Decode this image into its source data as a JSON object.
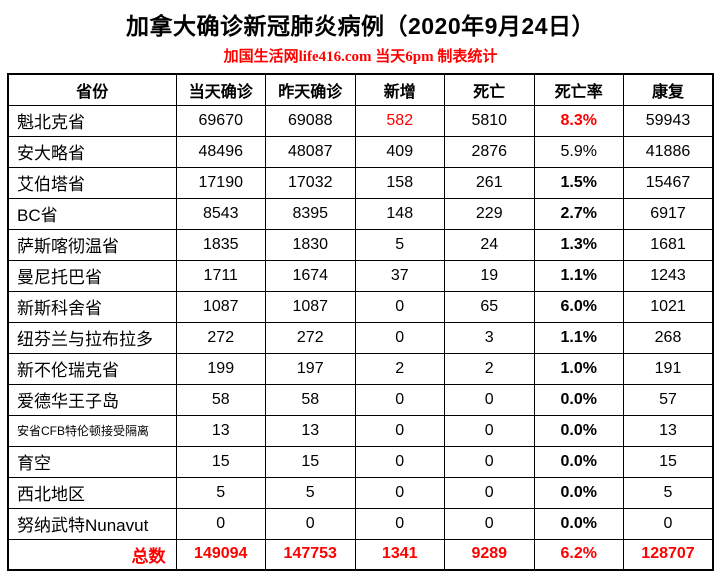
{
  "title": "加拿大确诊新冠肺炎病例（2020年9月24日）",
  "subtitle": "加国生活网life416.com 当天6pm 制表统计",
  "colors": {
    "accent_red": "#ff0000",
    "text": "#000000",
    "border": "#000000",
    "background": "#ffffff"
  },
  "chart_data": {
    "type": "table",
    "title": "加拿大确诊新冠肺炎病例（2020年9月24日）",
    "columns": [
      "省份",
      "当天确诊",
      "昨天确诊",
      "新增",
      "死亡",
      "死亡率",
      "康复"
    ],
    "rows": [
      {
        "province": "魁北克省",
        "today": "69670",
        "yesterday": "69088",
        "new": "582",
        "deaths": "5810",
        "rate": "8.3%",
        "recovered": "59943",
        "new_red": true,
        "rate_red": true,
        "rate_bold": true
      },
      {
        "province": "安大略省",
        "today": "48496",
        "yesterday": "48087",
        "new": "409",
        "deaths": "2876",
        "rate": "5.9%",
        "recovered": "41886"
      },
      {
        "province": "艾伯塔省",
        "today": "17190",
        "yesterday": "17032",
        "new": "158",
        "deaths": "261",
        "rate": "1.5%",
        "recovered": "15467",
        "rate_bold": true
      },
      {
        "province": "BC省",
        "today": "8543",
        "yesterday": "8395",
        "new": "148",
        "deaths": "229",
        "rate": "2.7%",
        "recovered": "6917",
        "rate_bold": true
      },
      {
        "province": "萨斯喀彻温省",
        "today": "1835",
        "yesterday": "1830",
        "new": "5",
        "deaths": "24",
        "rate": "1.3%",
        "recovered": "1681",
        "rate_bold": true
      },
      {
        "province": "曼尼托巴省",
        "today": "1711",
        "yesterday": "1674",
        "new": "37",
        "deaths": "19",
        "rate": "1.1%",
        "recovered": "1243",
        "rate_bold": true
      },
      {
        "province": "新斯科舍省",
        "today": "1087",
        "yesterday": "1087",
        "new": "0",
        "deaths": "65",
        "rate": "6.0%",
        "recovered": "1021",
        "rate_bold": true
      },
      {
        "province": "纽芬兰与拉布拉多",
        "today": "272",
        "yesterday": "272",
        "new": "0",
        "deaths": "3",
        "rate": "1.1%",
        "recovered": "268",
        "rate_bold": true
      },
      {
        "province": "新不伦瑞克省",
        "today": "199",
        "yesterday": "197",
        "new": "2",
        "deaths": "2",
        "rate": "1.0%",
        "recovered": "191",
        "rate_bold": true
      },
      {
        "province": "爱德华王子岛",
        "today": "58",
        "yesterday": "58",
        "new": "0",
        "deaths": "0",
        "rate": "0.0%",
        "recovered": "57",
        "rate_bold": true
      },
      {
        "province": "安省CFB特伦顿接受隔离",
        "today": "13",
        "yesterday": "13",
        "new": "0",
        "deaths": "0",
        "rate": "0.0%",
        "recovered": "13",
        "rate_bold": true,
        "small": true
      },
      {
        "province": "育空",
        "today": "15",
        "yesterday": "15",
        "new": "0",
        "deaths": "0",
        "rate": "0.0%",
        "recovered": "15",
        "rate_bold": true
      },
      {
        "province": "西北地区",
        "today": "5",
        "yesterday": "5",
        "new": "0",
        "deaths": "0",
        "rate": "0.0%",
        "recovered": "5",
        "rate_bold": true
      },
      {
        "province": "努纳武特Nunavut",
        "today": "0",
        "yesterday": "0",
        "new": "0",
        "deaths": "0",
        "rate": "0.0%",
        "recovered": "0",
        "rate_bold": true
      }
    ],
    "total_row": {
      "province": "总数",
      "today": "149094",
      "yesterday": "147753",
      "new": "1341",
      "deaths": "9289",
      "rate": "6.2%",
      "recovered": "128707"
    }
  }
}
